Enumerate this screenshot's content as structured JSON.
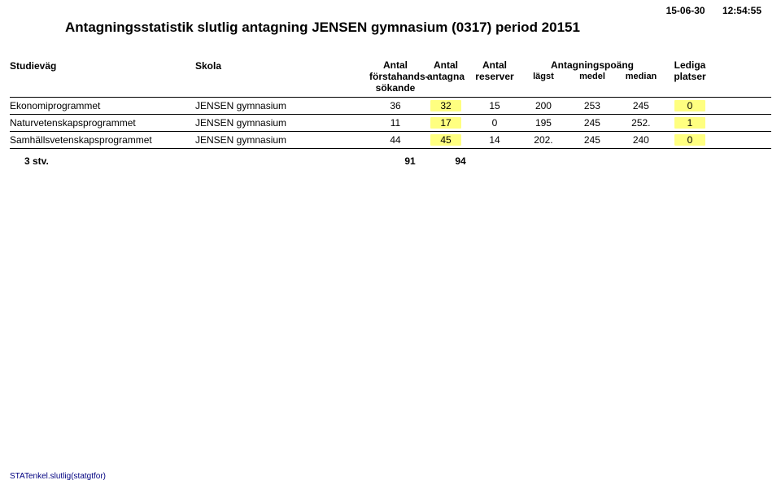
{
  "timestamp": {
    "date": "15-06-30",
    "time": "12:54:55"
  },
  "title": {
    "prefix": "Antagningsstatistik slutlig antagning",
    "suffix": "JENSEN gymnasium (0317) period 20151"
  },
  "columns": {
    "studievag": "Studieväg",
    "skola": "Skola",
    "forstahands": {
      "l1": "Antal",
      "l2": "förstahands-",
      "l3": "sökande"
    },
    "antagna": {
      "l1": "Antal",
      "l2": "antagna"
    },
    "reserver": {
      "l1": "Antal",
      "l2": "reserver"
    },
    "antagningspoang": {
      "group": "Antagningspoäng",
      "lagst": "lägst",
      "medel": "medel",
      "median": "median"
    },
    "lediga": {
      "l1": "Lediga",
      "l2": "platser"
    }
  },
  "rows": [
    {
      "studievag": "Ekonomiprogrammet",
      "skola": "JENSEN gymnasium",
      "forstahands": "36",
      "antagna": "32",
      "reserver": "15",
      "lagst": "200",
      "medel": "253",
      "median": "245",
      "lediga": "0"
    },
    {
      "studievag": "Naturvetenskapsprogrammet",
      "skola": "JENSEN gymnasium",
      "forstahands": "11",
      "antagna": "17",
      "reserver": "0",
      "lagst": "195",
      "medel": "245",
      "median": "252.",
      "lediga": "1"
    },
    {
      "studievag": "Samhällsvetenskapsprogrammet",
      "skola": "JENSEN gymnasium",
      "forstahands": "44",
      "antagna": "45",
      "reserver": "14",
      "lagst": "202.",
      "medel": "245",
      "median": "240",
      "lediga": "0"
    }
  ],
  "summary": {
    "label": "3  stv.",
    "forstahands": "91",
    "antagna": "94"
  },
  "footer": "STATenkel.slutlig(statgtfor)",
  "style": {
    "highlight_color": "#ffff80",
    "border_color": "#000000",
    "background": "#ffffff",
    "footer_color": "#000080"
  }
}
